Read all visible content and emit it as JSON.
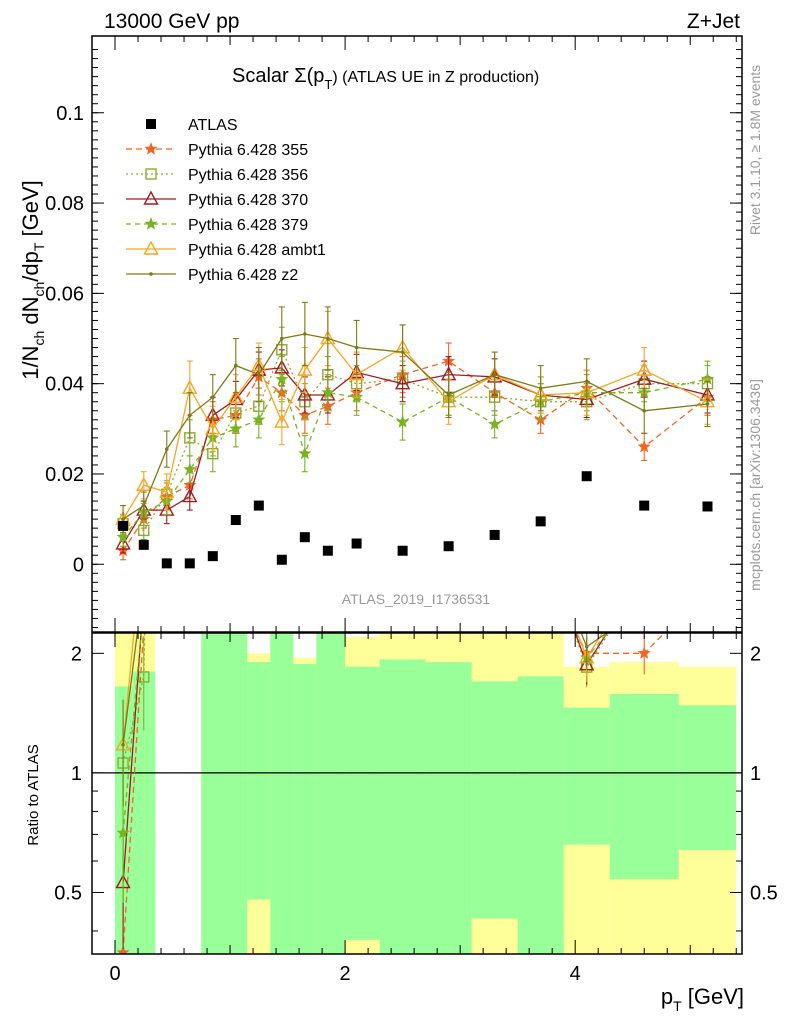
{
  "header": {
    "left": "13000 GeV pp",
    "right": "Z+Jet"
  },
  "side_labels": {
    "rivet": "Rivet 3.1.10, ≥ 1.8M events",
    "source": "mcplots.cern.ch [arXiv:1306.3436]"
  },
  "chart_data": {
    "type": "line",
    "title": "Scalar Σ(p_T) (ATLAS UE in Z production)",
    "title_parts": {
      "main": "Scalar Σ(p",
      "sub": "T",
      "rest": ") (ATLAS UE in Z production)"
    },
    "analysis_label": "ATLAS_2019_I1736531",
    "xlabel": "p_T [GeV]",
    "xlabel_parts": {
      "main": "p",
      "sub": "T",
      "rest": " [GeV]"
    },
    "ylabel": "1/N_ch dN_ch/dp_T [GeV]",
    "ratio_ylabel": "Ratio to ATLAS",
    "xlim": [
      -0.2,
      5.45
    ],
    "ylim": [
      -0.015,
      0.117
    ],
    "ratio_ylim": [
      0.35,
      2.25
    ],
    "x_ticks": [
      "0",
      "2",
      "4"
    ],
    "y_ticks": [
      "0",
      "0.02",
      "0.04",
      "0.06",
      "0.08",
      "0.1"
    ],
    "ratio_ticks": [
      "0.5",
      "1",
      "2"
    ],
    "legend_position": "top-left",
    "bin_edges": [
      0,
      0.15,
      0.35,
      0.55,
      0.75,
      0.95,
      1.15,
      1.35,
      1.55,
      1.75,
      2.0,
      2.3,
      2.7,
      3.1,
      3.5,
      3.9,
      4.3,
      4.9,
      5.4
    ],
    "data": {
      "name": "ATLAS",
      "x": [
        0.07,
        0.25,
        0.45,
        0.65,
        0.85,
        1.05,
        1.25,
        1.45,
        1.65,
        1.85,
        2.1,
        2.5,
        2.9,
        3.3,
        3.7,
        4.1,
        4.6,
        5.15
      ],
      "y": [
        0.0085,
        0.0043,
        0.0002,
        0.0002,
        0.0018,
        0.0098,
        0.013,
        0.001,
        0.006,
        0.003,
        0.0046,
        0.003,
        0.004,
        0.0065,
        0.0095,
        0.0195,
        0.013,
        0.0128
      ]
    },
    "band_outer": [
      {
        "x0": 0.0,
        "x1": 0.35,
        "lo": 0.35,
        "hi": 2.3
      },
      {
        "x0": 0.75,
        "x1": 1.15,
        "lo": 0.35,
        "hi": 2.3
      },
      {
        "x0": 1.15,
        "x1": 1.35,
        "lo": 0.35,
        "hi": 2.0
      },
      {
        "x0": 1.35,
        "x1": 1.55,
        "lo": 0.35,
        "hi": 2.3
      },
      {
        "x0": 1.55,
        "x1": 1.75,
        "lo": 0.35,
        "hi": 1.95
      },
      {
        "x0": 1.75,
        "x1": 2.0,
        "lo": 0.35,
        "hi": 2.3
      },
      {
        "x0": 2.0,
        "x1": 2.3,
        "lo": 0.35,
        "hi": 2.2
      },
      {
        "x0": 2.3,
        "x1": 3.5,
        "lo": 0.35,
        "hi": 2.3
      },
      {
        "x0": 3.5,
        "x1": 3.9,
        "lo": 0.35,
        "hi": 2.25
      },
      {
        "x0": 3.9,
        "x1": 4.3,
        "lo": 0.35,
        "hi": 1.85
      },
      {
        "x0": 4.3,
        "x1": 4.9,
        "lo": 0.35,
        "hi": 1.9
      },
      {
        "x0": 4.9,
        "x1": 5.4,
        "lo": 0.35,
        "hi": 1.85
      }
    ],
    "band_inner": [
      {
        "x0": 0.0,
        "x1": 0.15,
        "lo": 0.35,
        "hi": 1.65
      },
      {
        "x0": 0.15,
        "x1": 0.35,
        "lo": 0.35,
        "hi": 1.8
      },
      {
        "x0": 0.75,
        "x1": 1.15,
        "lo": 0.35,
        "hi": 2.3
      },
      {
        "x0": 1.15,
        "x1": 1.35,
        "lo": 0.48,
        "hi": 1.9
      },
      {
        "x0": 1.35,
        "x1": 1.55,
        "lo": 0.35,
        "hi": 2.3
      },
      {
        "x0": 1.55,
        "x1": 1.75,
        "lo": 0.35,
        "hi": 1.88
      },
      {
        "x0": 1.75,
        "x1": 2.0,
        "lo": 0.35,
        "hi": 2.3
      },
      {
        "x0": 2.0,
        "x1": 2.3,
        "lo": 0.38,
        "hi": 1.85
      },
      {
        "x0": 2.3,
        "x1": 2.7,
        "lo": 0.35,
        "hi": 1.93
      },
      {
        "x0": 2.7,
        "x1": 3.1,
        "lo": 0.35,
        "hi": 1.9
      },
      {
        "x0": 3.1,
        "x1": 3.5,
        "lo": 0.43,
        "hi": 1.7
      },
      {
        "x0": 3.5,
        "x1": 3.9,
        "lo": 0.35,
        "hi": 1.75
      },
      {
        "x0": 3.9,
        "x1": 4.3,
        "lo": 0.66,
        "hi": 1.46
      },
      {
        "x0": 4.3,
        "x1": 4.9,
        "lo": 0.54,
        "hi": 1.58
      },
      {
        "x0": 4.9,
        "x1": 5.4,
        "lo": 0.64,
        "hi": 1.48
      }
    ],
    "series": [
      {
        "name": "Pythia 6.428 355",
        "color": "#f26522",
        "dash": "6,4",
        "marker": "star",
        "x": [
          0.07,
          0.25,
          0.45,
          0.65,
          0.85,
          1.05,
          1.25,
          1.45,
          1.65,
          1.85,
          2.1,
          2.5,
          2.9,
          3.3,
          3.7,
          4.1,
          4.6,
          5.15
        ],
        "y": [
          0.003,
          0.01,
          0.015,
          0.0175,
          0.032,
          0.033,
          0.0415,
          0.038,
          0.033,
          0.035,
          0.038,
          0.042,
          0.045,
          0.038,
          0.032,
          0.039,
          0.026,
          0.037
        ],
        "err": [
          0.002,
          0.002,
          0.003,
          0.003,
          0.004,
          0.004,
          0.004,
          0.004,
          0.004,
          0.004,
          0.004,
          0.004,
          0.004,
          0.004,
          0.003,
          0.004,
          0.003,
          0.004
        ]
      },
      {
        "name": "Pythia 6.428 356",
        "color": "#8cab2e",
        "dash": "2,3",
        "marker": "square",
        "x": [
          0.07,
          0.25,
          0.45,
          0.65,
          0.85,
          1.05,
          1.25,
          1.45,
          1.65,
          1.85,
          2.1,
          2.5,
          2.9,
          3.3,
          3.7,
          4.1,
          4.6,
          5.15
        ],
        "y": [
          0.009,
          0.0075,
          0.0155,
          0.028,
          0.0245,
          0.0335,
          0.035,
          0.0475,
          0.036,
          0.042,
          0.04,
          0.041,
          0.037,
          0.037,
          0.036,
          0.036,
          0.04,
          0.04
        ],
        "err": [
          0.002,
          0.002,
          0.003,
          0.004,
          0.004,
          0.004,
          0.004,
          0.005,
          0.004,
          0.004,
          0.004,
          0.004,
          0.004,
          0.004,
          0.004,
          0.004,
          0.004,
          0.004
        ]
      },
      {
        "name": "Pythia 6.428 370",
        "color": "#a01c20",
        "dash": "",
        "marker": "triangle",
        "x": [
          0.07,
          0.25,
          0.45,
          0.65,
          0.85,
          1.05,
          1.25,
          1.45,
          1.65,
          1.85,
          2.1,
          2.5,
          2.9,
          3.3,
          3.7,
          4.1,
          4.6,
          5.15
        ],
        "y": [
          0.0045,
          0.012,
          0.012,
          0.015,
          0.033,
          0.0365,
          0.043,
          0.0435,
          0.0375,
          0.0375,
          0.0425,
          0.04,
          0.042,
          0.0415,
          0.0375,
          0.0365,
          0.041,
          0.0375
        ],
        "err": [
          0.002,
          0.002,
          0.003,
          0.003,
          0.004,
          0.004,
          0.004,
          0.004,
          0.004,
          0.004,
          0.004,
          0.004,
          0.004,
          0.004,
          0.004,
          0.004,
          0.004,
          0.004
        ]
      },
      {
        "name": "Pythia 6.428 379",
        "color": "#79b321",
        "dash": "5,4",
        "marker": "star",
        "x": [
          0.07,
          0.25,
          0.45,
          0.65,
          0.85,
          1.05,
          1.25,
          1.45,
          1.65,
          1.85,
          2.1,
          2.5,
          2.9,
          3.3,
          3.7,
          4.1,
          4.6,
          5.15
        ],
        "y": [
          0.006,
          0.0115,
          0.014,
          0.021,
          0.028,
          0.03,
          0.032,
          0.041,
          0.0245,
          0.038,
          0.037,
          0.0315,
          0.037,
          0.031,
          0.036,
          0.038,
          0.038,
          0.041
        ],
        "err": [
          0.002,
          0.002,
          0.003,
          0.003,
          0.004,
          0.004,
          0.004,
          0.005,
          0.004,
          0.004,
          0.004,
          0.004,
          0.004,
          0.003,
          0.004,
          0.004,
          0.004,
          0.004
        ]
      },
      {
        "name": "Pythia 6.428 ambt1",
        "color": "#f5a623",
        "dash": "",
        "marker": "triangle",
        "x": [
          0.07,
          0.25,
          0.45,
          0.65,
          0.85,
          1.05,
          1.25,
          1.45,
          1.65,
          1.85,
          2.1,
          2.5,
          2.9,
          3.3,
          3.7,
          4.1,
          4.6,
          5.15
        ],
        "y": [
          0.01,
          0.0175,
          0.016,
          0.039,
          0.03,
          0.037,
          0.044,
          0.0315,
          0.043,
          0.05,
          0.042,
          0.048,
          0.036,
          0.042,
          0.0375,
          0.038,
          0.043,
          0.036
        ],
        "err": [
          0.003,
          0.003,
          0.004,
          0.006,
          0.005,
          0.005,
          0.005,
          0.005,
          0.005,
          0.006,
          0.005,
          0.005,
          0.005,
          0.005,
          0.004,
          0.005,
          0.005,
          0.005
        ]
      },
      {
        "name": "Pythia 6.428 z2",
        "color": "#7d7a19",
        "dash": "",
        "marker": "dot",
        "x": [
          0.07,
          0.25,
          0.45,
          0.65,
          0.85,
          1.05,
          1.25,
          1.45,
          1.65,
          1.85,
          2.1,
          2.5,
          2.9,
          3.3,
          3.7,
          4.1,
          4.6,
          5.15
        ],
        "y": [
          0.01,
          0.013,
          0.0255,
          0.033,
          0.037,
          0.044,
          0.042,
          0.05,
          0.051,
          0.05,
          0.048,
          0.047,
          0.0375,
          0.042,
          0.039,
          0.0405,
          0.034,
          0.0355
        ],
        "err": [
          0.003,
          0.003,
          0.004,
          0.005,
          0.005,
          0.006,
          0.006,
          0.007,
          0.007,
          0.007,
          0.006,
          0.006,
          0.005,
          0.005,
          0.005,
          0.005,
          0.005,
          0.005
        ]
      }
    ]
  }
}
